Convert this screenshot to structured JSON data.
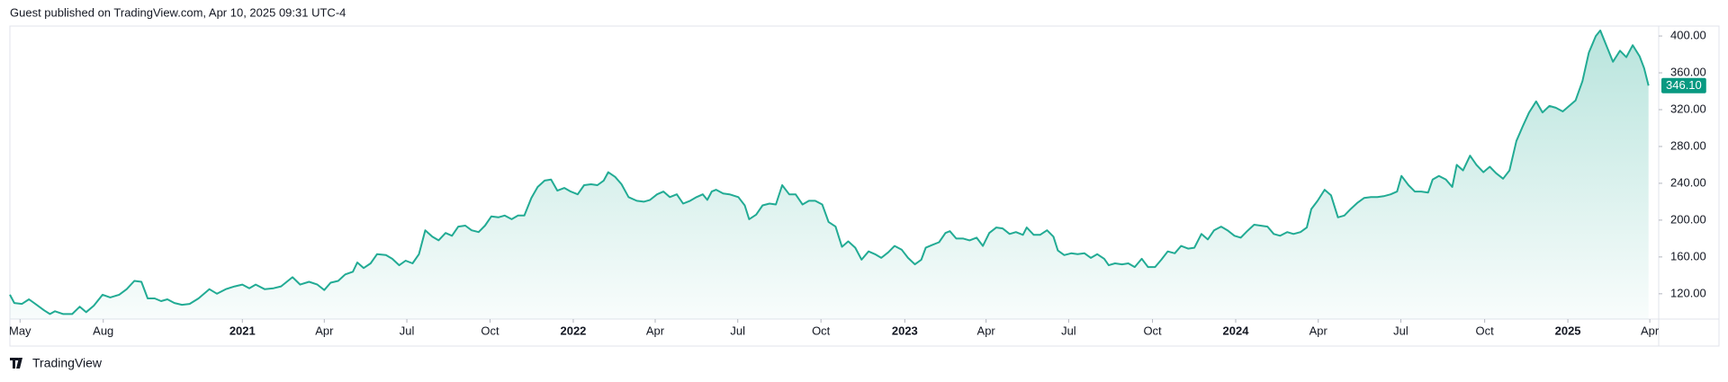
{
  "header": {
    "text": "Guest published on TradingView.com, Apr 10, 2025 09:31 UTC-4"
  },
  "footer": {
    "brand": "TradingView"
  },
  "chart_data": {
    "type": "area",
    "color": "#22ab94",
    "price_label": "346.10",
    "xlim": [
      -1.6,
      258
    ],
    "ylim": [
      92.5,
      410.8
    ],
    "xticks": [
      {
        "value": 0,
        "label": "May"
      },
      {
        "value": 13.1,
        "label": "Aug"
      },
      {
        "value": 35,
        "label": "2021"
      },
      {
        "value": 47.9,
        "label": "Apr"
      },
      {
        "value": 60.9,
        "label": "Jul"
      },
      {
        "value": 74,
        "label": "Oct"
      },
      {
        "value": 87.1,
        "label": "2022"
      },
      {
        "value": 100,
        "label": "Apr"
      },
      {
        "value": 113,
        "label": "Jul"
      },
      {
        "value": 126.1,
        "label": "Oct"
      },
      {
        "value": 139.3,
        "label": "2023"
      },
      {
        "value": 152.1,
        "label": "Apr"
      },
      {
        "value": 165.1,
        "label": "Jul"
      },
      {
        "value": 178.3,
        "label": "Oct"
      },
      {
        "value": 191.4,
        "label": "2024"
      },
      {
        "value": 204.4,
        "label": "Apr"
      },
      {
        "value": 217.4,
        "label": "Jul"
      },
      {
        "value": 230.6,
        "label": "Oct"
      },
      {
        "value": 243.7,
        "label": "2025"
      },
      {
        "value": 256.6,
        "label": "Apr"
      }
    ],
    "yticks": [
      {
        "value": 120,
        "label": "120.00"
      },
      {
        "value": 160,
        "label": "160.00"
      },
      {
        "value": 200,
        "label": "200.00"
      },
      {
        "value": 240,
        "label": "240.00"
      },
      {
        "value": 280,
        "label": "280.00"
      },
      {
        "value": 320,
        "label": "320.00"
      },
      {
        "value": 360,
        "label": "360.00"
      },
      {
        "value": 400,
        "label": "400.00"
      }
    ],
    "x": [
      -1.6,
      -0.9,
      0.3,
      1.4,
      2.6,
      3.8,
      4.7,
      5.5,
      6.8,
      8.2,
      9.4,
      10.4,
      11.6,
      13.0,
      14.2,
      15.6,
      16.8,
      18.0,
      19.1,
      20.1,
      21.2,
      22.2,
      23.2,
      24.3,
      25.5,
      26.7,
      28.1,
      29.8,
      31.0,
      32.4,
      33.8,
      35.0,
      36.1,
      37.1,
      38.5,
      39.9,
      41.1,
      42.9,
      44.1,
      45.5,
      46.8,
      47.9,
      48.9,
      50.1,
      51.2,
      52.4,
      53.1,
      54.1,
      55.2,
      56.2,
      57.6,
      58.6,
      59.7,
      60.7,
      61.8,
      62.8,
      63.8,
      64.9,
      65.9,
      67.0,
      68.0,
      69.0,
      70.1,
      71.1,
      72.2,
      73.2,
      74.2,
      75.3,
      76.3,
      77.4,
      78.4,
      79.4,
      80.5,
      81.5,
      82.6,
      83.6,
      84.6,
      85.7,
      86.7,
      87.8,
      88.8,
      89.9,
      90.9,
      91.9,
      92.6,
      93.7,
      94.7,
      95.8,
      97.1,
      98.2,
      99.2,
      100.3,
      101.3,
      102.3,
      103.4,
      104.4,
      105.5,
      106.5,
      107.5,
      108.2,
      108.9,
      109.6,
      110.7,
      111.7,
      113.1,
      114.1,
      114.8,
      115.9,
      116.9,
      118.0,
      119.0,
      120.0,
      121.1,
      122.1,
      123.2,
      124.2,
      125.2,
      126.3,
      127.3,
      128.4,
      129.4,
      130.4,
      131.5,
      132.5,
      133.6,
      134.6,
      135.6,
      136.7,
      137.7,
      138.8,
      139.8,
      140.9,
      141.9,
      142.6,
      143.6,
      144.7,
      145.7,
      146.4,
      147.4,
      148.5,
      149.5,
      150.6,
      151.6,
      152.6,
      153.7,
      154.7,
      155.8,
      156.8,
      157.9,
      158.5,
      159.6,
      160.6,
      161.7,
      162.7,
      163.4,
      164.4,
      165.5,
      166.5,
      167.6,
      168.6,
      169.6,
      170.7,
      171.4,
      172.4,
      173.5,
      174.5,
      175.5,
      176.6,
      177.6,
      178.7,
      179.7,
      180.7,
      181.8,
      182.8,
      183.9,
      184.9,
      186.0,
      187.0,
      188.0,
      189.1,
      190.1,
      191.2,
      192.2,
      193.2,
      194.3,
      195.3,
      196.4,
      197.4,
      198.4,
      199.5,
      200.5,
      201.6,
      202.6,
      203.3,
      204.3,
      205.4,
      206.4,
      207.5,
      208.5,
      209.5,
      210.6,
      211.6,
      212.7,
      213.7,
      214.7,
      215.8,
      216.8,
      217.5,
      218.6,
      219.6,
      220.6,
      221.7,
      222.4,
      223.4,
      224.5,
      225.5,
      226.2,
      227.2,
      228.3,
      229.3,
      230.4,
      231.4,
      232.4,
      233.5,
      234.5,
      235.6,
      236.6,
      237.6,
      238.7,
      239.7,
      240.8,
      241.8,
      242.9,
      243.9,
      244.9,
      246.0,
      247.0,
      248.1,
      248.8,
      249.8,
      250.8,
      251.9,
      252.9,
      253.9,
      255.0,
      255.7,
      256.4
    ],
    "values": [
      119,
      110,
      109,
      114,
      108,
      102,
      98,
      101,
      98,
      98,
      106,
      100,
      107,
      119,
      116,
      119,
      125,
      134,
      133,
      115,
      115,
      112,
      114,
      110,
      108,
      109,
      115,
      125,
      120,
      125,
      128,
      130,
      126,
      130,
      125,
      126,
      128,
      138,
      130,
      133,
      130,
      124,
      132,
      134,
      141,
      144,
      154,
      148,
      153,
      163,
      162,
      158,
      151,
      156,
      153,
      163,
      189,
      182,
      178,
      186,
      183,
      193,
      194,
      189,
      187,
      194,
      204,
      203,
      205,
      201,
      205,
      205,
      224,
      236,
      243,
      244,
      232,
      235,
      231,
      228,
      238,
      239,
      238,
      243,
      252,
      247,
      239,
      225,
      221,
      220,
      222,
      228,
      231,
      225,
      228,
      218,
      221,
      225,
      228,
      222,
      231,
      233,
      229,
      228,
      225,
      216,
      201,
      206,
      216,
      218,
      217,
      238,
      228,
      228,
      217,
      221,
      221,
      217,
      198,
      193,
      171,
      177,
      170,
      157,
      166,
      163,
      159,
      165,
      172,
      168,
      159,
      152,
      157,
      170,
      173,
      176,
      186,
      188,
      180,
      180,
      178,
      181,
      172,
      186,
      192,
      191,
      185,
      187,
      184,
      192,
      184,
      184,
      189,
      182,
      167,
      162,
      164,
      163,
      164,
      159,
      163,
      158,
      151,
      153,
      152,
      153,
      149,
      158,
      149,
      149,
      157,
      166,
      164,
      172,
      169,
      170,
      185,
      179,
      189,
      193,
      189,
      183,
      181,
      188,
      195,
      194,
      193,
      185,
      183,
      187,
      185,
      187,
      192,
      212,
      221,
      233,
      227,
      203,
      205,
      212,
      219,
      224,
      225,
      225,
      226,
      228,
      231,
      248,
      238,
      231,
      231,
      230,
      244,
      248,
      244,
      236,
      260,
      254,
      270,
      260,
      252,
      258,
      251,
      245,
      254,
      286,
      302,
      317,
      329,
      317,
      324,
      322,
      318,
      324,
      330,
      351,
      382,
      400,
      406,
      389,
      372,
      384,
      377,
      390,
      378,
      365,
      346.1
    ]
  }
}
